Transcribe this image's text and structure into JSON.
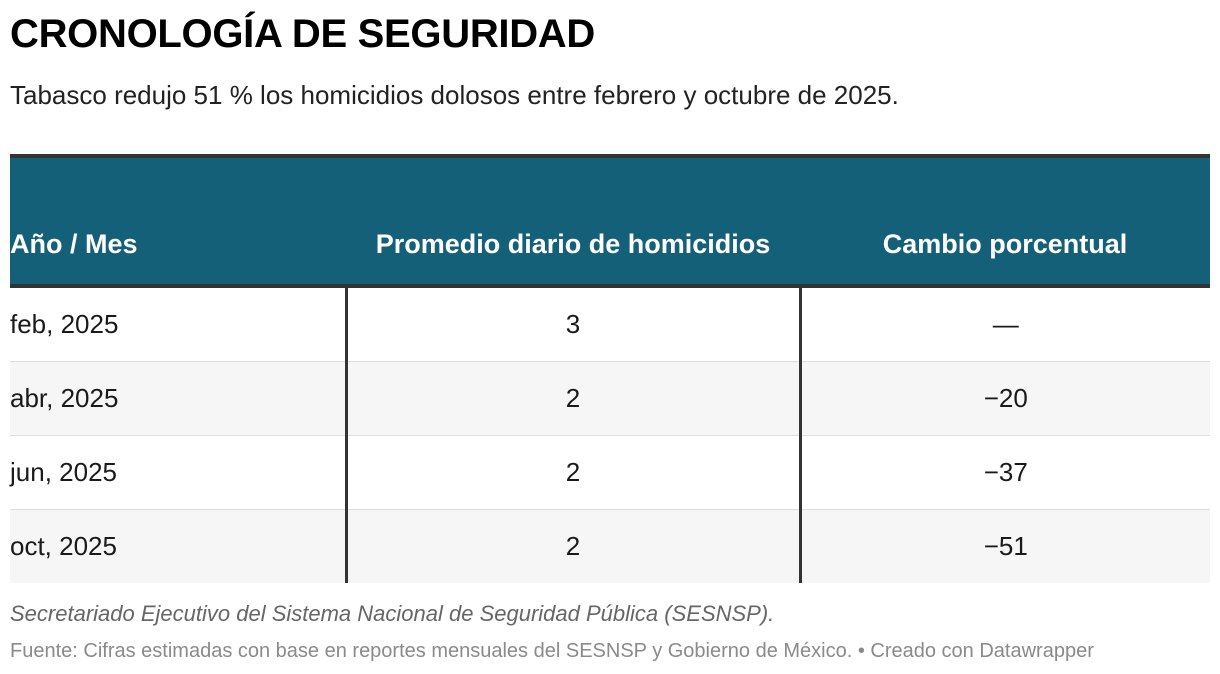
{
  "header": {
    "title": "CRONOLOGÍA DE SEGURIDAD",
    "subtitle": "Tabasco redujo 51 % los homicidios dolosos entre febrero y octubre de 2025."
  },
  "chart_data": {
    "type": "table",
    "columns": [
      "Año / Mes",
      "Promedio diario de homicidios",
      "Cambio porcentual"
    ],
    "rows": [
      [
        "feb, 2025",
        "3",
        "—"
      ],
      [
        "abr, 2025",
        "2",
        "−20"
      ],
      [
        "jun, 2025",
        "2",
        "−37"
      ],
      [
        "oct, 2025",
        "2",
        "−51"
      ]
    ]
  },
  "footer": {
    "note": "Secretariado Ejecutivo del Sistema Nacional de Seguridad Pública (SESNSP).",
    "source": "Fuente: Cifras estimadas con base en reportes mensuales del SESNSP y Gobierno de México. • Creado con Datawrapper"
  },
  "colors": {
    "header_bg": "#156079",
    "rule": "#333333",
    "alt_row": "#f6f6f6"
  }
}
